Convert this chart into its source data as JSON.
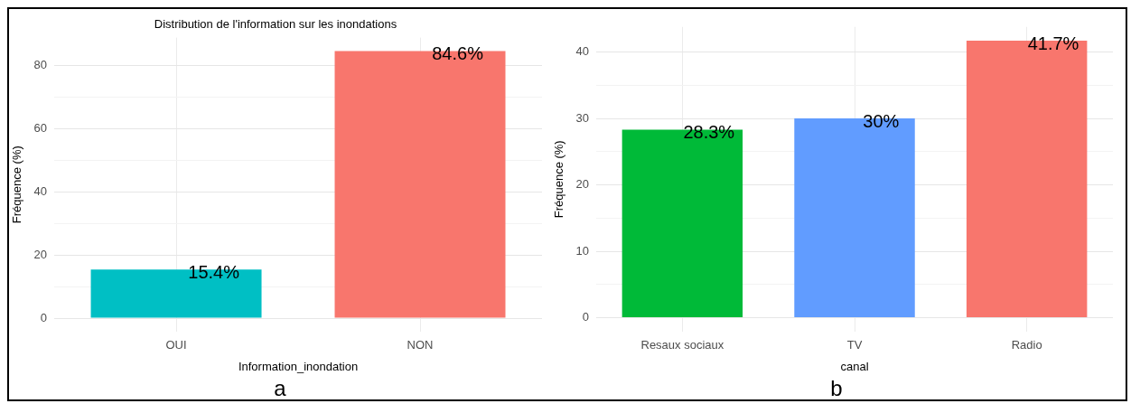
{
  "chart_data": [
    {
      "type": "bar",
      "title": "Distribution de l'information sur les inondations",
      "xlabel": "Information_inondation",
      "ylabel": "Fréquence (%)",
      "categories": [
        "OUI",
        "NON"
      ],
      "values": [
        15.4,
        84.6
      ],
      "colors": [
        "#00bfc4",
        "#f8766d"
      ],
      "value_labels": [
        "15.4%",
        "84.6%"
      ],
      "ylim": [
        -4.23,
        88.83
      ],
      "yticks": [
        0,
        {
          "value": 10,
          "label": null
        },
        20,
        {
          "value": 30,
          "label": null
        },
        40,
        {
          "value": 50,
          "label": null
        },
        60,
        {
          "value": 70,
          "label": null
        },
        80
      ],
      "grid": true,
      "annotations": [
        "a"
      ]
    },
    {
      "type": "bar",
      "xlabel": "canal",
      "ylabel": "Fréquence (%)",
      "categories": [
        "Resaux sociaux",
        "TV",
        "Radio"
      ],
      "values": [
        28.3,
        30,
        41.7
      ],
      "colors": [
        "#00ba38",
        "#619cff",
        "#f8766d"
      ],
      "value_labels": [
        "28.3%",
        "30%",
        "41.7%"
      ],
      "ylim": [
        -2.085,
        43.785
      ],
      "yticks": [
        0,
        {
          "value": 5,
          "label": null
        },
        10,
        {
          "value": 15,
          "label": null
        },
        20,
        {
          "value": 25,
          "label": null
        },
        30,
        {
          "value": 35,
          "label": null
        },
        40
      ],
      "grid": true,
      "annotations": [
        "b"
      ]
    }
  ]
}
